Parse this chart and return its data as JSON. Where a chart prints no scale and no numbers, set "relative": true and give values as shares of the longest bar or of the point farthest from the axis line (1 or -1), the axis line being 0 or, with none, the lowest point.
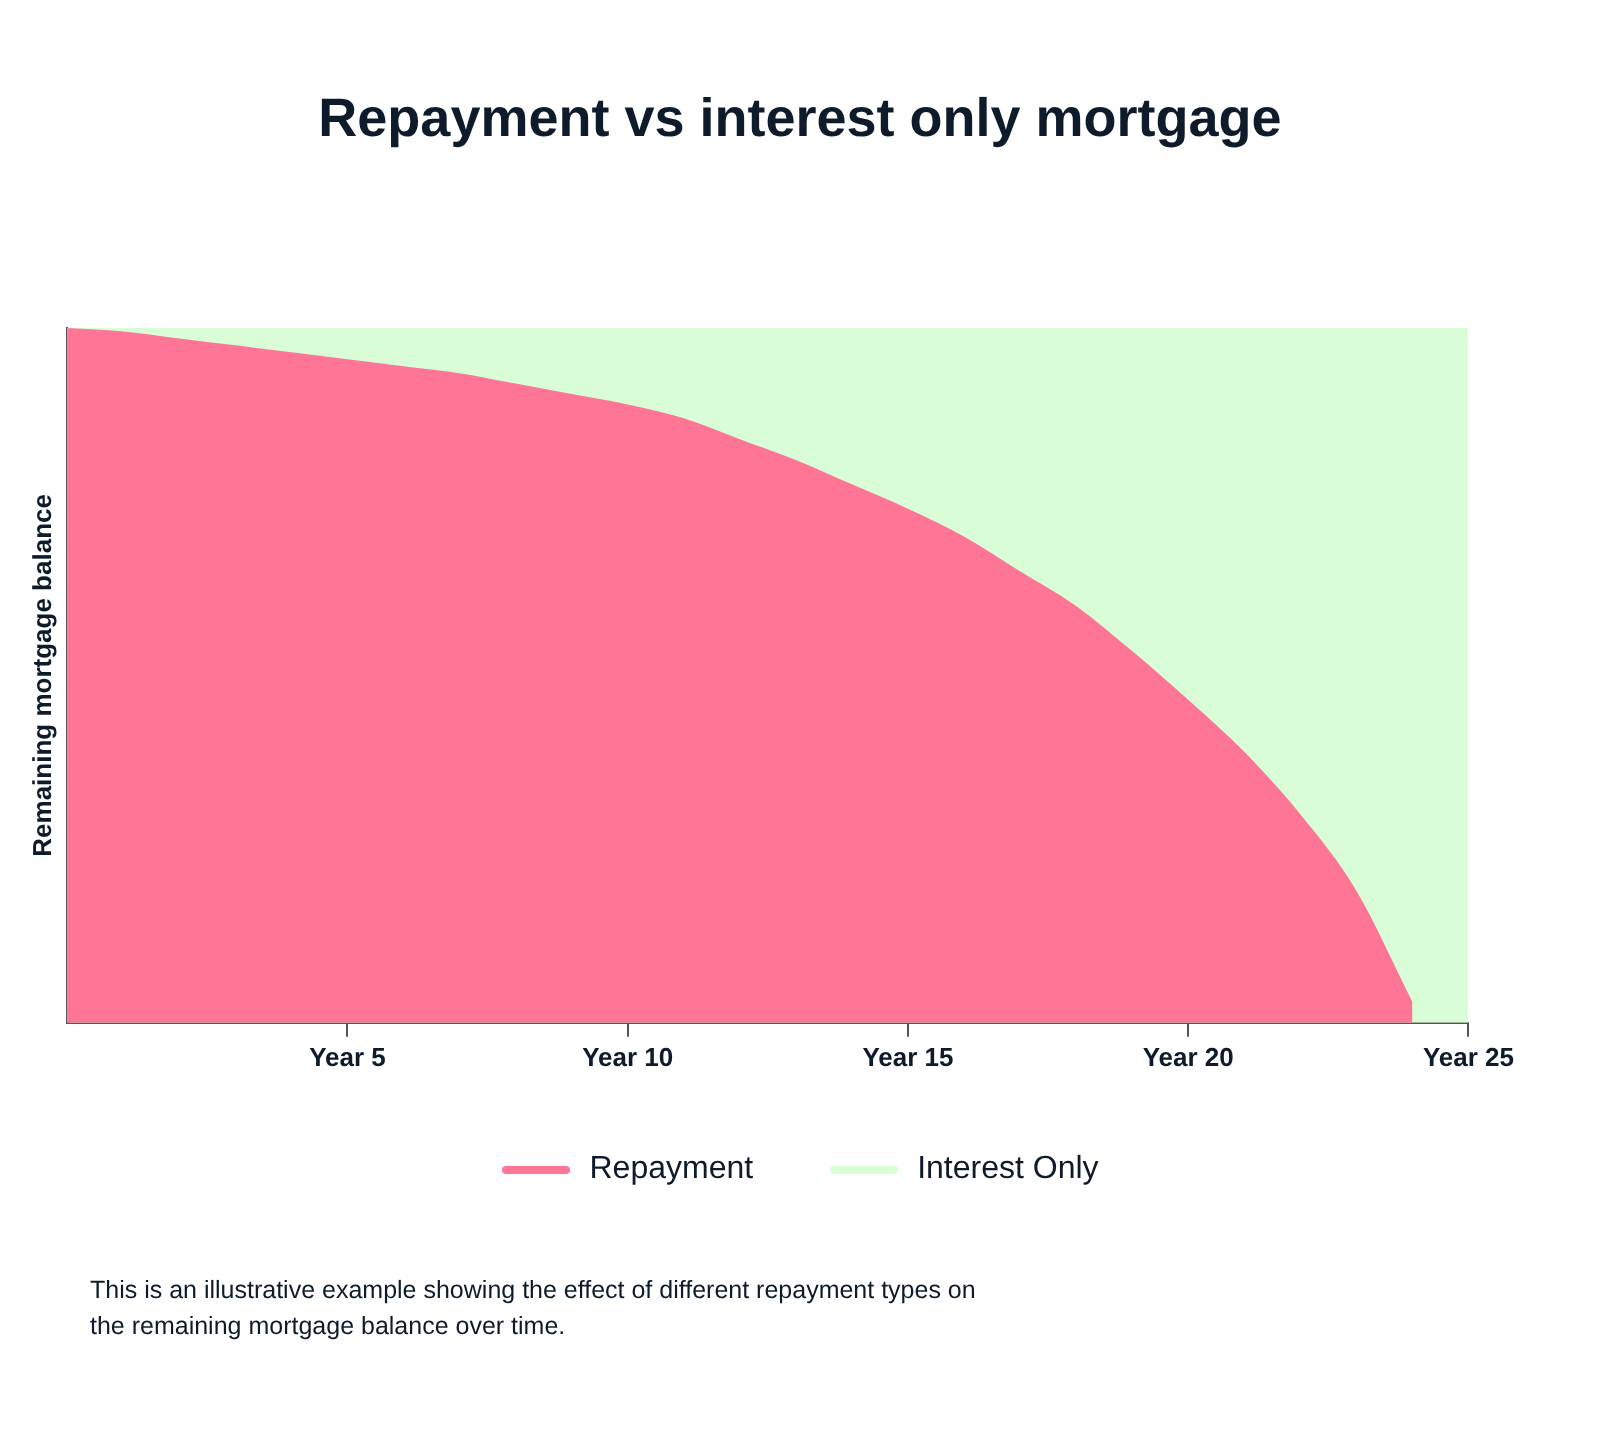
{
  "chart_data": {
    "type": "area",
    "title": "Repayment vs interest only mortgage",
    "ylabel": "Remaining mortgage balance",
    "relative": true,
    "categories": [
      null,
      null,
      null,
      null,
      null,
      "Year 5",
      null,
      null,
      null,
      null,
      "Year 10",
      null,
      null,
      null,
      null,
      "Year 15",
      null,
      null,
      null,
      null,
      "Year 20",
      null,
      null,
      null,
      null,
      "Year 25"
    ],
    "series": [
      {
        "name": "Repayment",
        "color": "#ff7596",
        "values": [
          1,
          0.995,
          0.985,
          0.975,
          0.965,
          0.955,
          0.945,
          0.935,
          0.92,
          0.905,
          0.89,
          0.87,
          0.84,
          0.81,
          0.775,
          0.74,
          0.7,
          0.65,
          0.6,
          0.535,
          0.465,
          0.39,
          0.3,
          0.19,
          0.03,
          null
        ]
      },
      {
        "name": "Interest Only",
        "color": "#d9fdd6",
        "values": [
          1,
          1,
          1,
          1,
          1,
          1,
          1,
          1,
          1,
          1,
          1,
          1,
          1,
          1,
          1,
          1,
          1,
          1,
          1,
          1,
          1,
          1,
          1,
          1,
          1,
          1
        ]
      }
    ],
    "legend": "bottom",
    "grid": false,
    "annotations": [
      "This is an illustrative example showing the effect of different repayment types on the remaining mortgage balance over time."
    ]
  }
}
